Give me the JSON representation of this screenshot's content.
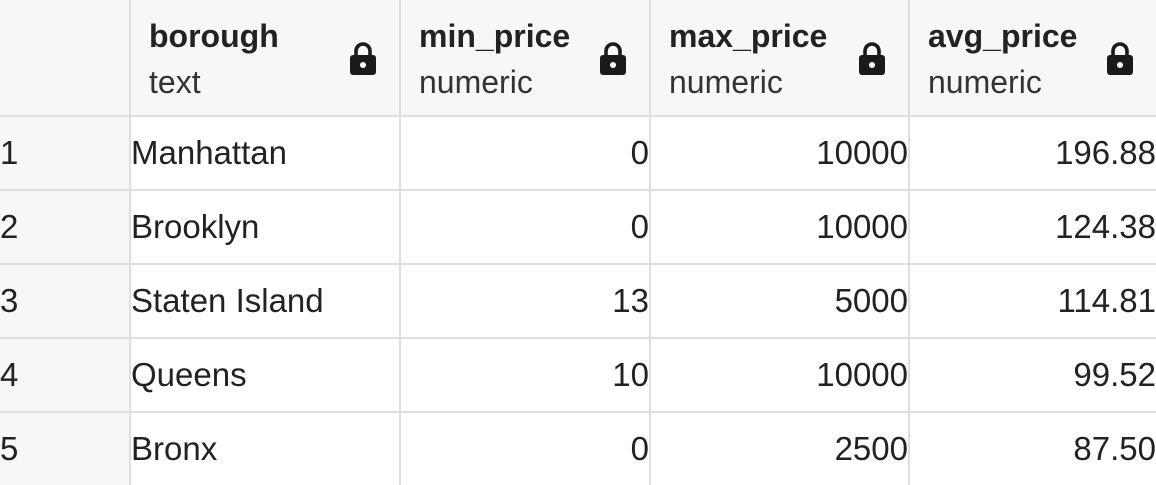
{
  "columns": [
    {
      "name": "borough",
      "type": "text",
      "icon": "lock-icon"
    },
    {
      "name": "min_price",
      "type": "numeric",
      "icon": "lock-icon"
    },
    {
      "name": "max_price",
      "type": "numeric",
      "icon": "lock-icon"
    },
    {
      "name": "avg_price",
      "type": "numeric",
      "icon": "lock-icon"
    }
  ],
  "rows": [
    {
      "num": "1",
      "borough": "Manhattan",
      "min_price": "0",
      "max_price": "10000",
      "avg_price": "196.88"
    },
    {
      "num": "2",
      "borough": "Brooklyn",
      "min_price": "0",
      "max_price": "10000",
      "avg_price": "124.38"
    },
    {
      "num": "3",
      "borough": "Staten Island",
      "min_price": "13",
      "max_price": "5000",
      "avg_price": "114.81"
    },
    {
      "num": "4",
      "borough": "Queens",
      "min_price": "10",
      "max_price": "10000",
      "avg_price": "99.52"
    },
    {
      "num": "5",
      "borough": "Bronx",
      "min_price": "0",
      "max_price": "2500",
      "avg_price": "87.50"
    }
  ],
  "colors": {
    "header_bg": "#f7f7f7",
    "border": "#dedede",
    "text": "#222222"
  }
}
